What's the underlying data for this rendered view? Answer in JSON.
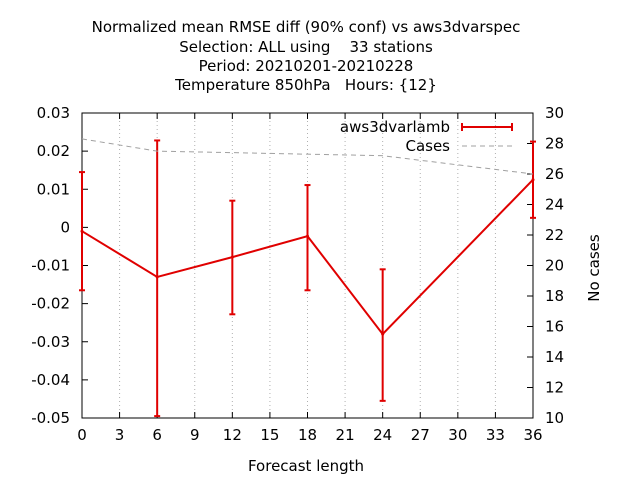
{
  "chart_data": {
    "type": "line",
    "title_lines": [
      "Normalized mean RMSE diff (90% conf) vs aws3dvarspec",
      "Selection: ALL using    33 stations",
      "Period: 20210201-20210228",
      "Temperature 850hPa   Hours: {12}"
    ],
    "xlabel": "Forecast length",
    "ylabel": "",
    "y2label": "No cases",
    "xlim": [
      0,
      36
    ],
    "ylim": [
      -0.05,
      0.03
    ],
    "y2lim": [
      10,
      30
    ],
    "xticks": [
      "0",
      "3",
      "6",
      "9",
      "12",
      "15",
      "18",
      "21",
      "24",
      "27",
      "30",
      "33",
      "36"
    ],
    "yticks": [
      "-0.05",
      "-0.04",
      "-0.03",
      "-0.02",
      "-0.01",
      "0",
      "0.01",
      "0.02",
      "0.03"
    ],
    "y2ticks": [
      "10",
      "12",
      "14",
      "16",
      "18",
      "20",
      "22",
      "24",
      "26",
      "28",
      "30"
    ],
    "grid": "x-dotted",
    "legend_position": "top-right",
    "series": [
      {
        "name": "aws3dvarlamb",
        "color": "#e00000",
        "style": "solid-errorbars",
        "axis": "y",
        "x": [
          0,
          6,
          12,
          18,
          24,
          36
        ],
        "y": [
          -0.001,
          -0.013,
          -0.0078,
          -0.0023,
          -0.028,
          0.0125
        ],
        "err_low": [
          -0.0165,
          -0.0495,
          -0.0228,
          -0.0165,
          -0.0455,
          0.0025
        ],
        "err_high": [
          0.0145,
          0.0228,
          0.007,
          0.0111,
          -0.011,
          0.0225
        ]
      },
      {
        "name": "Cases",
        "color": "#a0a0a0",
        "style": "dashed",
        "axis": "y2",
        "x": [
          0,
          6,
          12,
          18,
          24,
          36
        ],
        "y": [
          28.3,
          27.5,
          27.4,
          27.3,
          27.2,
          26.0
        ]
      }
    ]
  }
}
